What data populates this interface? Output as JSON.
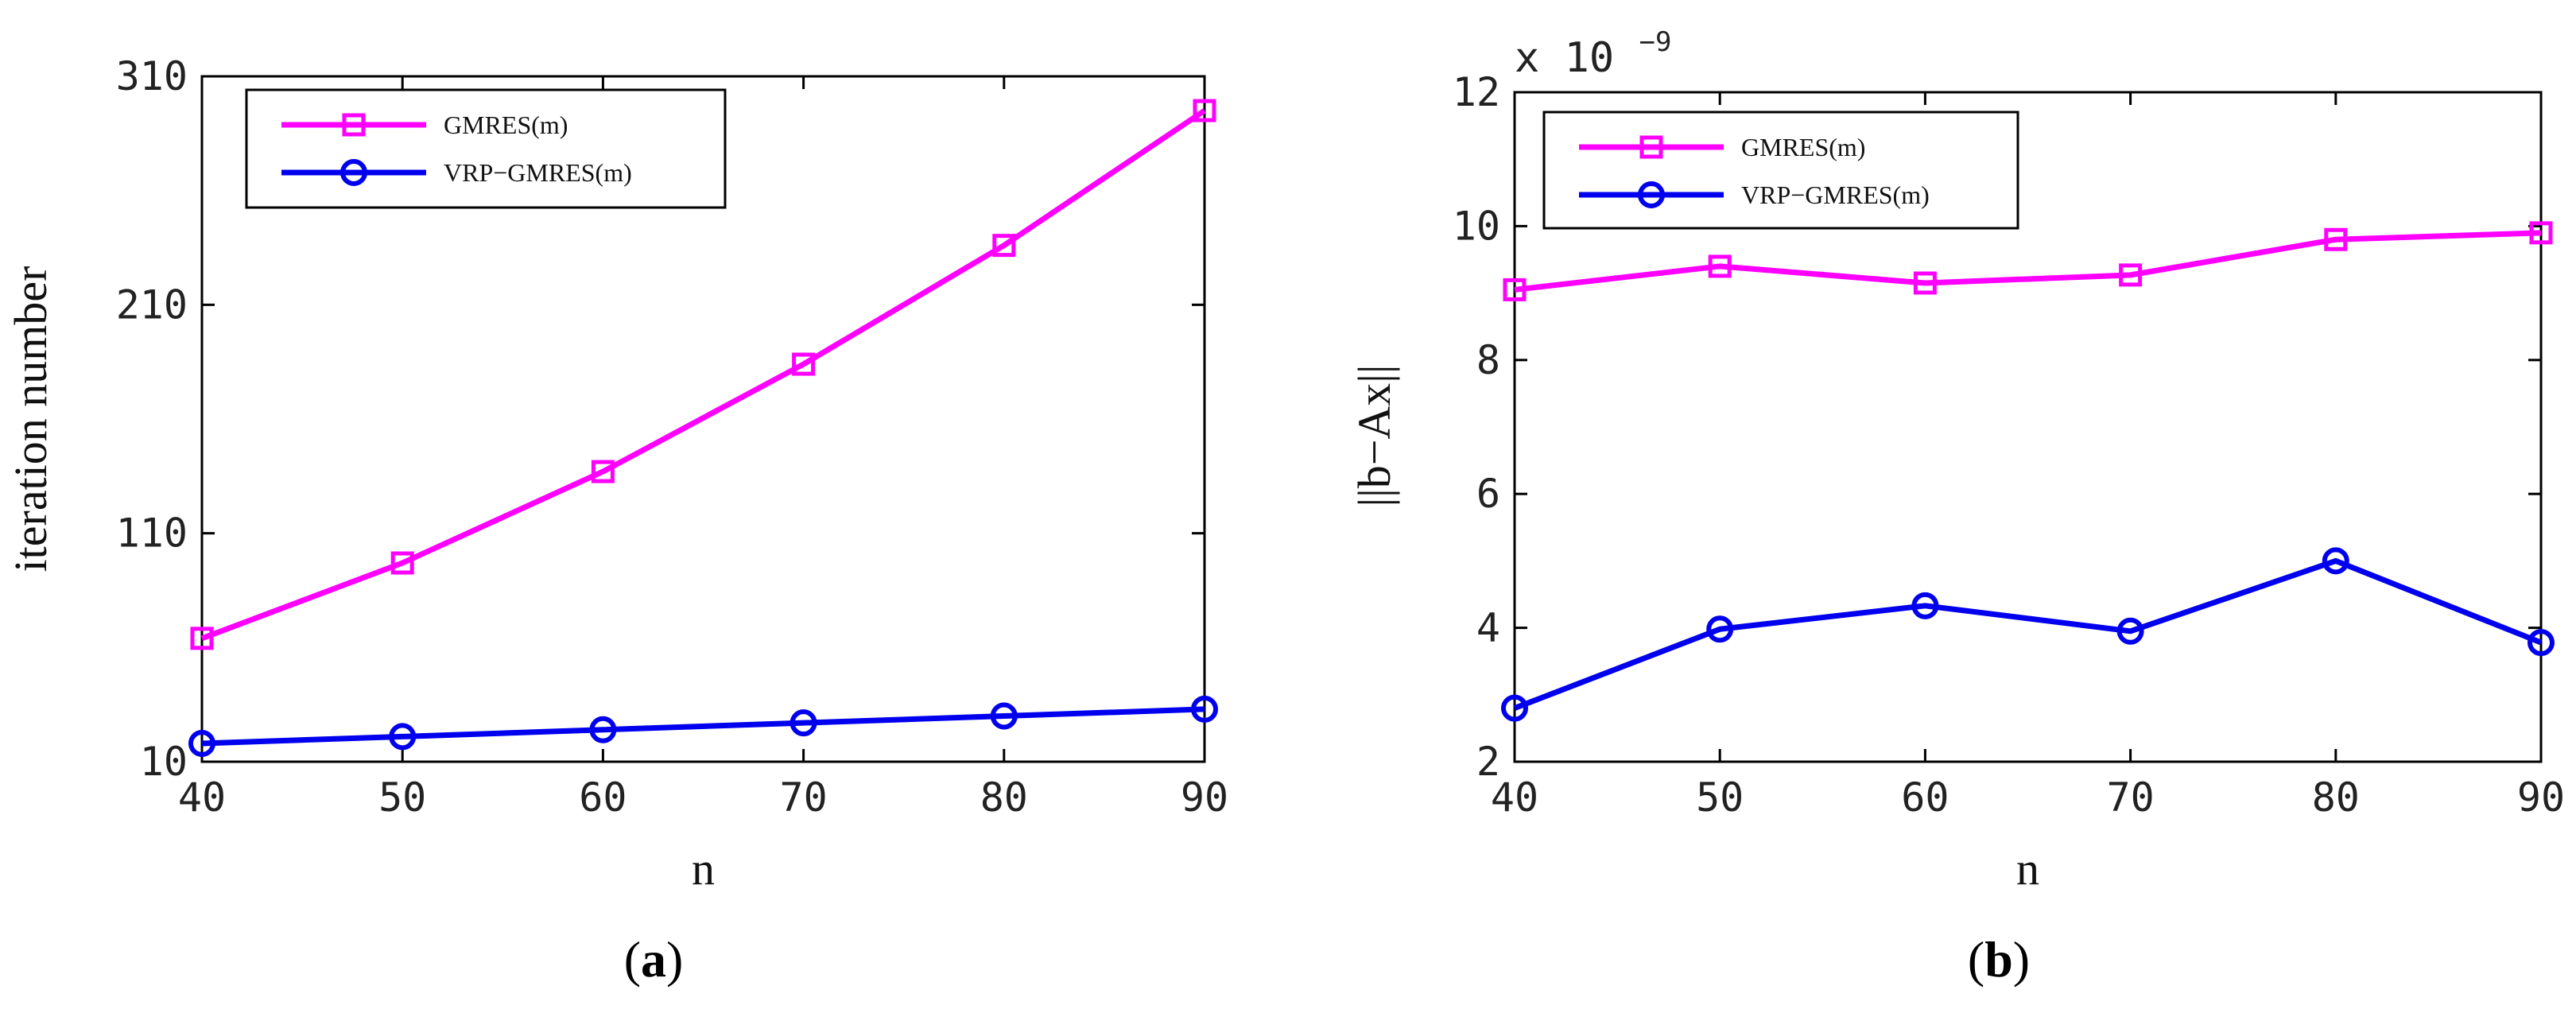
{
  "chart_data": [
    {
      "type": "line",
      "caption_label": "a",
      "xlabel": "n",
      "ylabel": "iteration number",
      "x": [
        40,
        50,
        60,
        70,
        80,
        90
      ],
      "xlim": [
        40,
        90
      ],
      "ylim": [
        10,
        310
      ],
      "xticks": [
        "40",
        "50",
        "60",
        "70",
        "80",
        "90"
      ],
      "yticks": [
        "10",
        "110",
        "210",
        "310"
      ],
      "grid": false,
      "legend_position": "top-left",
      "series": [
        {
          "name": "GMRES(m)",
          "color": "#ff00ff",
          "marker": "square",
          "values": [
            64,
            97,
            137,
            184,
            236,
            295
          ]
        },
        {
          "name": "VRP−GMRES(m)",
          "color": "#0000ee",
          "marker": "circle",
          "values": [
            18,
            21,
            24,
            27,
            30,
            33
          ]
        }
      ]
    },
    {
      "type": "line",
      "caption_label": "b",
      "xlabel": "n",
      "ylabel": "||b−Ax||",
      "scale_base": "x 10",
      "scale_exponent": "−9",
      "x": [
        40,
        50,
        60,
        70,
        80,
        90
      ],
      "xlim": [
        40,
        90
      ],
      "ylim": [
        2,
        12
      ],
      "xticks": [
        "40",
        "50",
        "60",
        "70",
        "80",
        "90"
      ],
      "yticks": [
        "2",
        "4",
        "6",
        "8",
        "10",
        "12"
      ],
      "grid": false,
      "legend_position": "top-left",
      "series": [
        {
          "name": "GMRES(m)",
          "color": "#ff00ff",
          "marker": "square",
          "values": [
            9.05,
            9.4,
            9.15,
            9.27,
            9.8,
            9.9
          ]
        },
        {
          "name": "VRP−GMRES(m)",
          "color": "#0000ee",
          "marker": "circle",
          "values": [
            2.8,
            3.98,
            4.33,
            3.95,
            5.0,
            3.78
          ]
        }
      ]
    }
  ]
}
